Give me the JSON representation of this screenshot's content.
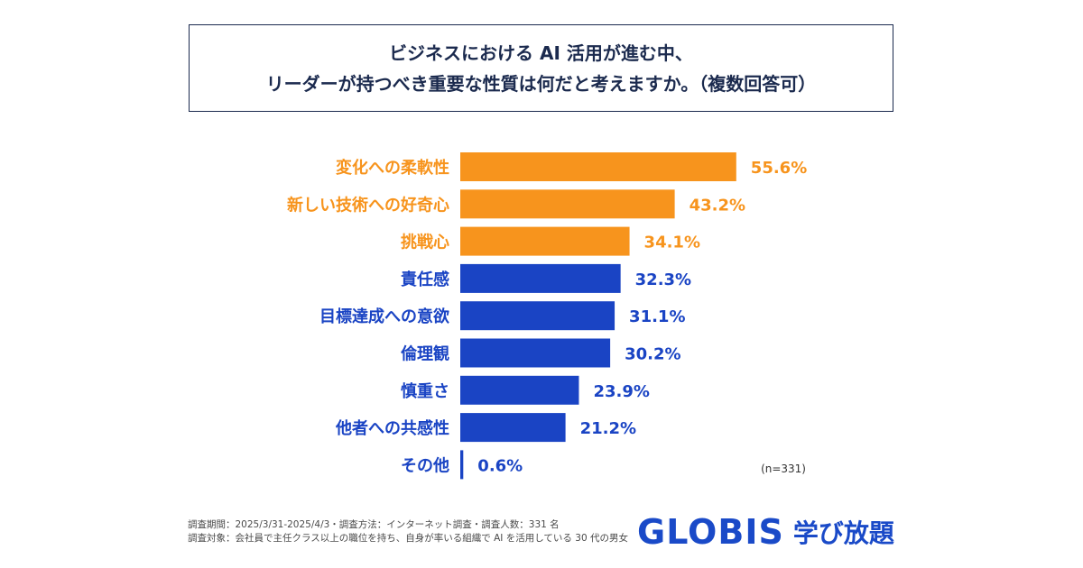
{
  "chart_data": {
    "type": "bar",
    "orientation": "horizontal",
    "title_lines": [
      "ビジネスにおける AI 活用が進む中、",
      "リーダーが持つべき重要な性質は何だと考えますか。（複数回答可）"
    ],
    "categories": [
      "変化への柔軟性",
      "新しい技術への好奇心",
      "挑戦心",
      "責任感",
      "目標達成への意欲",
      "倫理観",
      "慎重さ",
      "他者への共感性",
      "その他"
    ],
    "values": [
      55.6,
      43.2,
      34.1,
      32.3,
      31.1,
      30.2,
      23.9,
      21.2,
      0.6
    ],
    "value_labels": [
      "55.6%",
      "43.2%",
      "34.1%",
      "32.3%",
      "31.1%",
      "30.2%",
      "23.9%",
      "21.2%",
      "0.6%"
    ],
    "highlight_top_n": 3,
    "highlight_color": "#f7941d",
    "base_color": "#1a44c4",
    "sample_note": "(n=331)",
    "xlim": [
      0,
      100
    ]
  },
  "footer": {
    "line1": "調査期間：2025/3/31-2025/4/3・調査方法：インターネット調査・調査人数：331 名",
    "line2": "調査対象：会社員で主任クラス以上の職位を持ち、自身が率いる組織で AI を活用している 30 代の男女"
  },
  "brand": {
    "name": "GLOBIS",
    "suffix": "学び放題"
  }
}
